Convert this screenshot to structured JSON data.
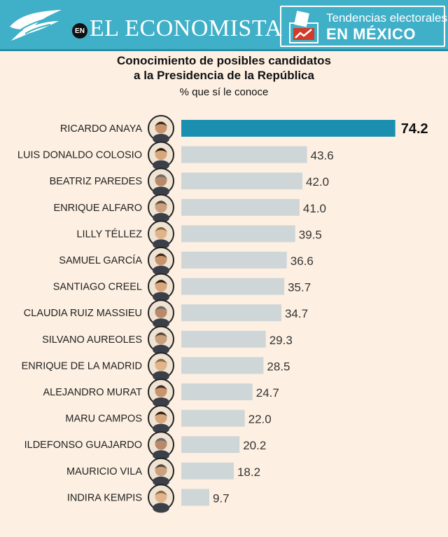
{
  "header": {
    "en_badge": "EN",
    "brand": "EL ECONOMISTA",
    "section_line1": "Tendencias electorales",
    "section_line2": "EN MÉXICO"
  },
  "colors": {
    "header_bg": "#3fb0c8",
    "highlight_bar": "#1a8fb0",
    "bar": "#cfd6d8",
    "background": "#fdf0e2"
  },
  "chart_data": {
    "type": "bar",
    "orientation": "horizontal",
    "title_line1": "Conocimiento de posibles candidatos",
    "title_line2": "a la Presidencia de la República",
    "subtitle": "% que sí le conoce",
    "categories": [
      "RICARDO ANAYA",
      "LUIS DONALDO COLOSIO",
      "BEATRIZ PAREDES",
      "ENRIQUE ALFARO",
      "LILLY TÉLLEZ",
      "SAMUEL GARCÍA",
      "SANTIAGO CREEL",
      "CLAUDIA RUIZ MASSIEU",
      "SILVANO AUREOLES",
      "ENRIQUE DE LA MADRID",
      "ALEJANDRO MURAT",
      "MARU CAMPOS",
      "ILDEFONSO GUAJARDO",
      "MAURICIO VILA",
      "INDIRA KEMPIS"
    ],
    "values": [
      74.2,
      43.6,
      42.0,
      41.0,
      39.5,
      36.6,
      35.7,
      34.7,
      29.3,
      28.5,
      24.7,
      22.0,
      20.2,
      18.2,
      9.7
    ],
    "value_labels": [
      "74.2",
      "43.6",
      "42.0",
      "41.0",
      "39.5",
      "36.6",
      "35.7",
      "34.7",
      "29.3",
      "28.5",
      "24.7",
      "22.0",
      "20.2",
      "18.2",
      "9.7"
    ],
    "highlight_index": 0,
    "xlim": [
      0,
      100
    ]
  }
}
